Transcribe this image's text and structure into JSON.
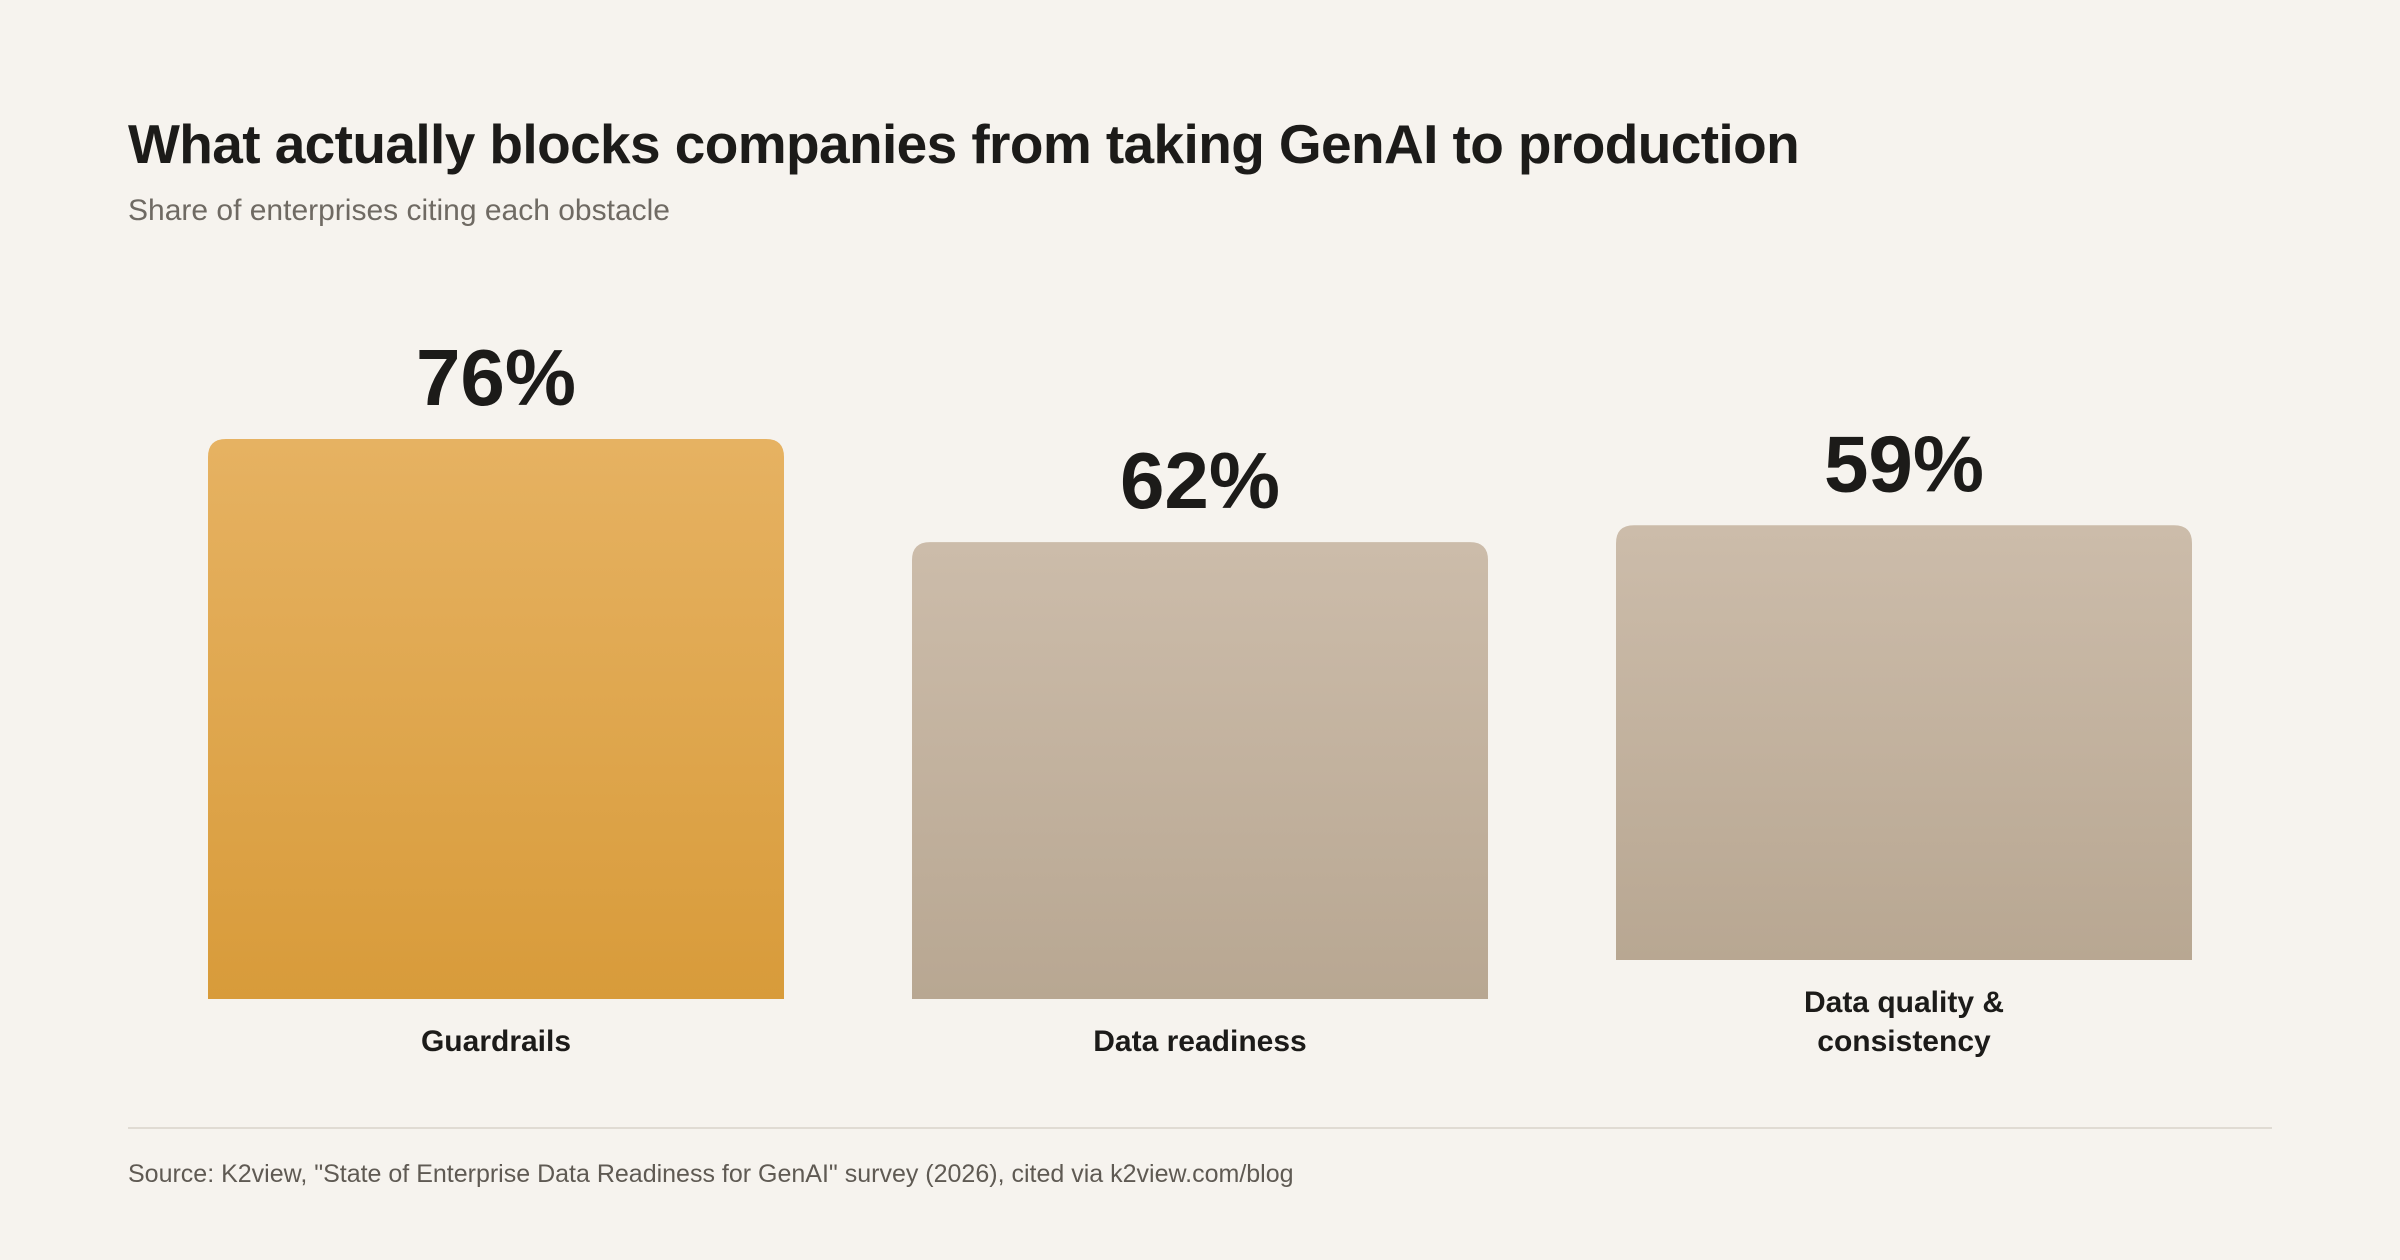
{
  "title": "What actually blocks companies from taking GenAI to production",
  "subtitle": "Share of enterprises citing each obstacle",
  "source": "Source: K2view, \"State of Enterprise Data Readiness for GenAI\" survey (2026), cited via k2view.com/blog",
  "colors": {
    "background": "#f6f3ee",
    "highlight_top": "#e6b262",
    "highlight_bottom": "#d89b3a",
    "neutral_top": "#ccbcaa",
    "neutral_bottom": "#b8a792",
    "text": "#1c1b19"
  },
  "chart_data": {
    "type": "bar",
    "categories": [
      "Guardrails",
      "Data readiness",
      "Data quality & consistency"
    ],
    "category_lines": [
      [
        "Guardrails"
      ],
      [
        "Data readiness"
      ],
      [
        "Data quality &",
        "consistency"
      ]
    ],
    "values": [
      76,
      62,
      59
    ],
    "value_labels": [
      "76%",
      "62%",
      "59%"
    ],
    "highlight": [
      true,
      false,
      false
    ],
    "grid": false,
    "legend": "none"
  }
}
